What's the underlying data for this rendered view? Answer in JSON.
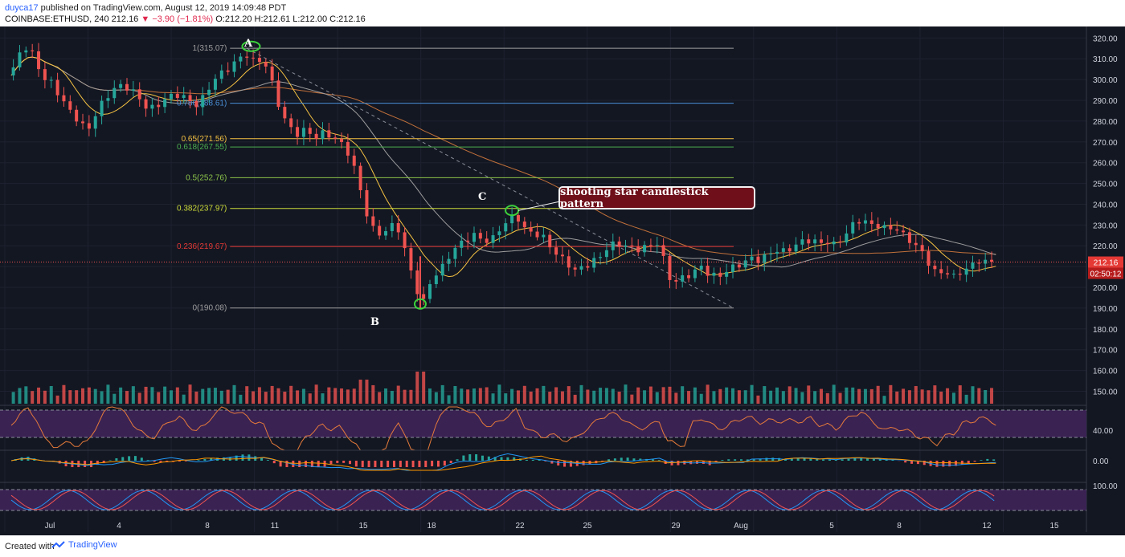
{
  "header": {
    "user": "duyca17",
    "published": "published on TradingView.com, August 12, 2019 14:09:48 PDT",
    "symbol_line": "COINBASE:ETHUSD, 240",
    "last": "212.16",
    "change": "−3.90 (−1.81%)",
    "ohlc": "O:212.20 H:212.61 L:212.00 C:212.16"
  },
  "footer": {
    "created_with": "Created with",
    "brand": "TradingView"
  },
  "annotations": {
    "A": "A",
    "B": "B",
    "C": "C",
    "note": "shooting star candlestick pattern"
  },
  "colors": {
    "background": "#131722",
    "up": "#26a69a",
    "down": "#ef5350",
    "ma_fast": "#f5c242",
    "ma_mid": "#9e9e9e",
    "ma_slow": "#c0703a",
    "fib": "#9e9e9e",
    "marker": "#3cd23c",
    "rsi_band": "#3a2253"
  },
  "chart_data": {
    "type": "candlestick",
    "title": "COINBASE:ETHUSD, 240",
    "x_tick_labels": [
      "Jul",
      "4",
      "8",
      "11",
      "15",
      "18",
      "22",
      "25",
      "29",
      "Aug",
      "5",
      "8",
      "12",
      "15"
    ],
    "y_tick_labels": [
      "320.00",
      "310.00",
      "300.00",
      "290.00",
      "280.00",
      "270.00",
      "260.00",
      "250.00",
      "240.00",
      "230.00",
      "220.00",
      "210.00",
      "200.00",
      "190.00",
      "180.00",
      "170.00",
      "160.00",
      "150.00"
    ],
    "ylim": [
      144,
      324
    ],
    "last_price_label": "212.16",
    "countdown_label": "02:50:12",
    "price_path": [
      [
        0,
        302
      ],
      [
        1,
        313
      ],
      [
        2,
        316
      ],
      [
        3,
        308
      ],
      [
        4,
        300
      ],
      [
        5,
        298
      ],
      [
        6,
        290
      ],
      [
        7,
        285
      ],
      [
        8,
        280
      ],
      [
        9,
        275
      ],
      [
        10,
        283
      ],
      [
        11,
        290
      ],
      [
        12,
        295
      ],
      [
        13,
        297
      ],
      [
        14,
        296
      ],
      [
        15,
        292
      ],
      [
        16,
        287
      ],
      [
        17,
        286
      ],
      [
        18,
        290
      ],
      [
        19,
        292
      ],
      [
        20,
        293
      ],
      [
        21,
        290
      ],
      [
        22,
        288
      ],
      [
        23,
        292
      ],
      [
        24,
        300
      ],
      [
        25,
        303
      ],
      [
        26,
        306
      ],
      [
        27,
        310
      ],
      [
        28,
        312
      ],
      [
        29,
        308
      ],
      [
        30,
        310
      ],
      [
        31,
        298
      ],
      [
        32,
        285
      ],
      [
        33,
        277
      ],
      [
        34,
        274
      ],
      [
        35,
        276
      ],
      [
        36,
        272
      ],
      [
        37,
        274
      ],
      [
        38,
        273
      ],
      [
        39,
        270
      ],
      [
        40,
        265
      ],
      [
        41,
        255
      ],
      [
        42,
        238
      ],
      [
        43,
        228
      ],
      [
        44,
        225
      ],
      [
        45,
        230
      ],
      [
        46,
        228
      ],
      [
        47,
        215
      ],
      [
        48,
        200
      ],
      [
        49,
        193
      ],
      [
        50,
        205
      ],
      [
        51,
        208
      ],
      [
        52,
        215
      ],
      [
        53,
        220
      ],
      [
        54,
        223
      ],
      [
        55,
        225
      ],
      [
        56,
        223
      ],
      [
        57,
        222
      ],
      [
        58,
        228
      ],
      [
        59,
        232
      ],
      [
        60,
        235
      ],
      [
        61,
        228
      ],
      [
        62,
        226
      ],
      [
        63,
        225
      ],
      [
        64,
        220
      ],
      [
        65,
        215
      ],
      [
        66,
        212
      ],
      [
        67,
        208
      ],
      [
        68,
        210
      ],
      [
        69,
        212
      ],
      [
        70,
        215
      ],
      [
        71,
        220
      ],
      [
        72,
        221
      ],
      [
        73,
        220
      ],
      [
        74,
        218
      ],
      [
        75,
        219
      ],
      [
        76,
        220
      ],
      [
        77,
        222
      ],
      [
        78,
        205
      ],
      [
        79,
        203
      ],
      [
        80,
        205
      ],
      [
        81,
        207
      ],
      [
        82,
        210
      ],
      [
        83,
        206
      ],
      [
        84,
        205
      ],
      [
        85,
        208
      ],
      [
        86,
        210
      ],
      [
        87,
        212
      ],
      [
        88,
        214
      ],
      [
        89,
        213
      ],
      [
        90,
        216
      ],
      [
        91,
        218
      ],
      [
        92,
        217
      ],
      [
        93,
        220
      ],
      [
        94,
        222
      ],
      [
        95,
        223
      ],
      [
        96,
        221
      ],
      [
        97,
        222
      ],
      [
        98,
        220
      ],
      [
        99,
        225
      ],
      [
        100,
        230
      ],
      [
        101,
        233
      ],
      [
        102,
        230
      ],
      [
        103,
        230
      ],
      [
        104,
        228
      ],
      [
        105,
        229
      ],
      [
        106,
        225
      ],
      [
        107,
        222
      ],
      [
        108,
        218
      ],
      [
        109,
        212
      ],
      [
        110,
        206
      ],
      [
        111,
        208
      ],
      [
        112,
        205
      ],
      [
        113,
        208
      ],
      [
        114,
        210
      ],
      [
        115,
        213
      ],
      [
        116,
        212
      ],
      [
        117,
        212.16
      ]
    ],
    "fib_levels": [
      {
        "label": "1(315.07)",
        "value": 315.07
      },
      {
        "label": "0.786(288.61)",
        "value": 288.61
      },
      {
        "label": "0.65(271.56)",
        "value": 271.56
      },
      {
        "label": "0.618(267.55)",
        "value": 267.55
      },
      {
        "label": "0.5(252.76)",
        "value": 252.76
      },
      {
        "label": "0.382(237.97)",
        "value": 237.97
      },
      {
        "label": "0.236(219.67)",
        "value": 219.67
      },
      {
        "label": "0(190.08)",
        "value": 190.08
      }
    ],
    "rsi": {
      "tick_label": "40.00",
      "upper": 70,
      "lower": 30
    },
    "macd": {
      "tick_label": "0.00"
    },
    "stoch": {
      "tick_label": "100.00"
    }
  }
}
